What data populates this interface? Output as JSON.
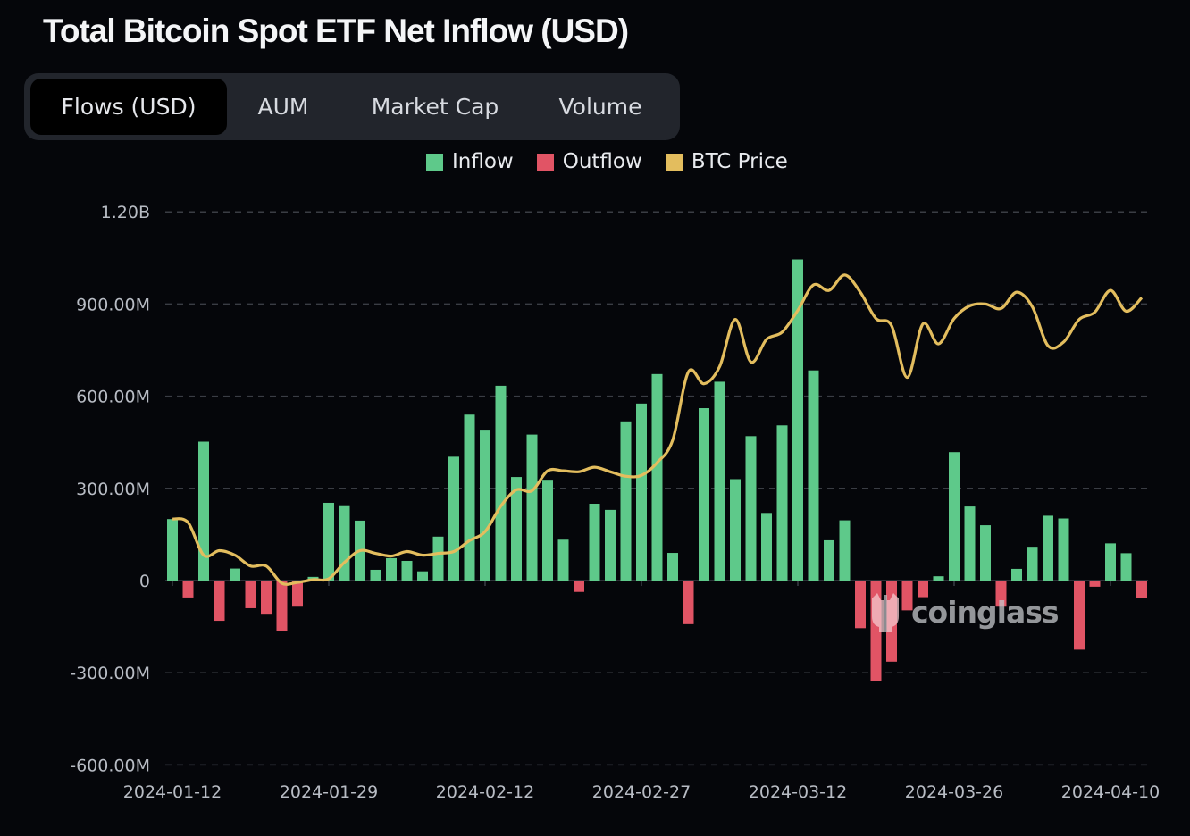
{
  "title": "Total Bitcoin Spot ETF Net Inflow (USD)",
  "tabs": [
    {
      "label": "Flows (USD)",
      "active": true
    },
    {
      "label": "AUM",
      "active": false
    },
    {
      "label": "Market Cap",
      "active": false
    },
    {
      "label": "Volume",
      "active": false
    }
  ],
  "watermark": "coinglass",
  "colors": {
    "inflow": "#5ec98a",
    "outflow": "#e15465",
    "btc_price": "#e3bd5e",
    "background": "#05060a"
  },
  "chart_data": {
    "type": "bar",
    "title": "Total Bitcoin Spot ETF Net Inflow (USD)",
    "legend": [
      "Inflow",
      "Outflow",
      "BTC Price"
    ],
    "legend_position": "top-center",
    "grid": true,
    "ylim": [
      -600000000,
      1200000000
    ],
    "y_ticks": [
      {
        "value": 1200000000,
        "label": "1.20B"
      },
      {
        "value": 900000000,
        "label": "900.00M"
      },
      {
        "value": 600000000,
        "label": "600.00M"
      },
      {
        "value": 300000000,
        "label": "300.00M"
      },
      {
        "value": 0,
        "label": "0"
      },
      {
        "value": -300000000,
        "label": "-300.00M"
      },
      {
        "value": -600000000,
        "label": "-600.00M"
      }
    ],
    "x_tick_labels": [
      "2024-01-12",
      "2024-01-29",
      "2024-02-12",
      "2024-02-27",
      "2024-03-12",
      "2024-03-26",
      "2024-04-10"
    ],
    "dates": [
      "2024-01-12",
      "2024-01-16",
      "2024-01-17",
      "2024-01-18",
      "2024-01-19",
      "2024-01-22",
      "2024-01-23",
      "2024-01-24",
      "2024-01-25",
      "2024-01-26",
      "2024-01-29",
      "2024-01-30",
      "2024-01-31",
      "2024-02-01",
      "2024-02-02",
      "2024-02-05",
      "2024-02-06",
      "2024-02-07",
      "2024-02-08",
      "2024-02-09",
      "2024-02-12",
      "2024-02-13",
      "2024-02-14",
      "2024-02-15",
      "2024-02-16",
      "2024-02-20",
      "2024-02-21",
      "2024-02-22",
      "2024-02-23",
      "2024-02-26",
      "2024-02-27",
      "2024-02-28",
      "2024-02-29",
      "2024-03-01",
      "2024-03-04",
      "2024-03-05",
      "2024-03-06",
      "2024-03-07",
      "2024-03-08",
      "2024-03-11",
      "2024-03-12",
      "2024-03-13",
      "2024-03-14",
      "2024-03-15",
      "2024-03-18",
      "2024-03-19",
      "2024-03-20",
      "2024-03-21",
      "2024-03-22",
      "2024-03-25",
      "2024-03-26",
      "2024-03-27",
      "2024-03-28",
      "2024-04-01",
      "2024-04-02",
      "2024-04-03",
      "2024-04-04",
      "2024-04-05",
      "2024-04-08",
      "2024-04-09",
      "2024-04-10",
      "2024-04-11",
      "2024-04-12"
    ],
    "series": [
      {
        "name": "Net Flow",
        "unit": "USD M",
        "values": [
          200,
          -55,
          452,
          -131,
          39,
          -90,
          -111,
          -163,
          -85,
          12,
          253,
          245,
          195,
          35,
          73,
          64,
          30,
          143,
          403,
          540,
          491,
          634,
          337,
          475,
          328,
          133,
          -37,
          250,
          230,
          518,
          576,
          672,
          90,
          -142,
          561,
          647,
          330,
          470,
          220,
          505,
          1045,
          684,
          131,
          196,
          -155,
          -328,
          -264,
          -97,
          -54,
          14,
          418,
          241,
          180,
          -85,
          38,
          110,
          211,
          202,
          -225,
          -20,
          121,
          89,
          -58
        ]
      },
      {
        "name": "BTC Price",
        "unit": "USD",
        "values": [
          46300,
          45900,
          42300,
          42800,
          42300,
          41100,
          41100,
          39200,
          39300,
          39600,
          39700,
          41500,
          42800,
          42500,
          42200,
          42700,
          42300,
          42500,
          42700,
          43900,
          44900,
          47700,
          49500,
          49400,
          51600,
          51600,
          51500,
          52000,
          51500,
          51000,
          51100,
          52500,
          55000,
          62500,
          61200,
          63100,
          68300,
          63600,
          66100,
          66900,
          69300,
          72100,
          71500,
          73200,
          71300,
          68400,
          67600,
          61900,
          67800,
          65600,
          68400,
          69800,
          70000,
          69500,
          71300,
          69700,
          65400,
          65800,
          68300,
          69100,
          71500,
          69200,
          70700
        ]
      }
    ]
  }
}
